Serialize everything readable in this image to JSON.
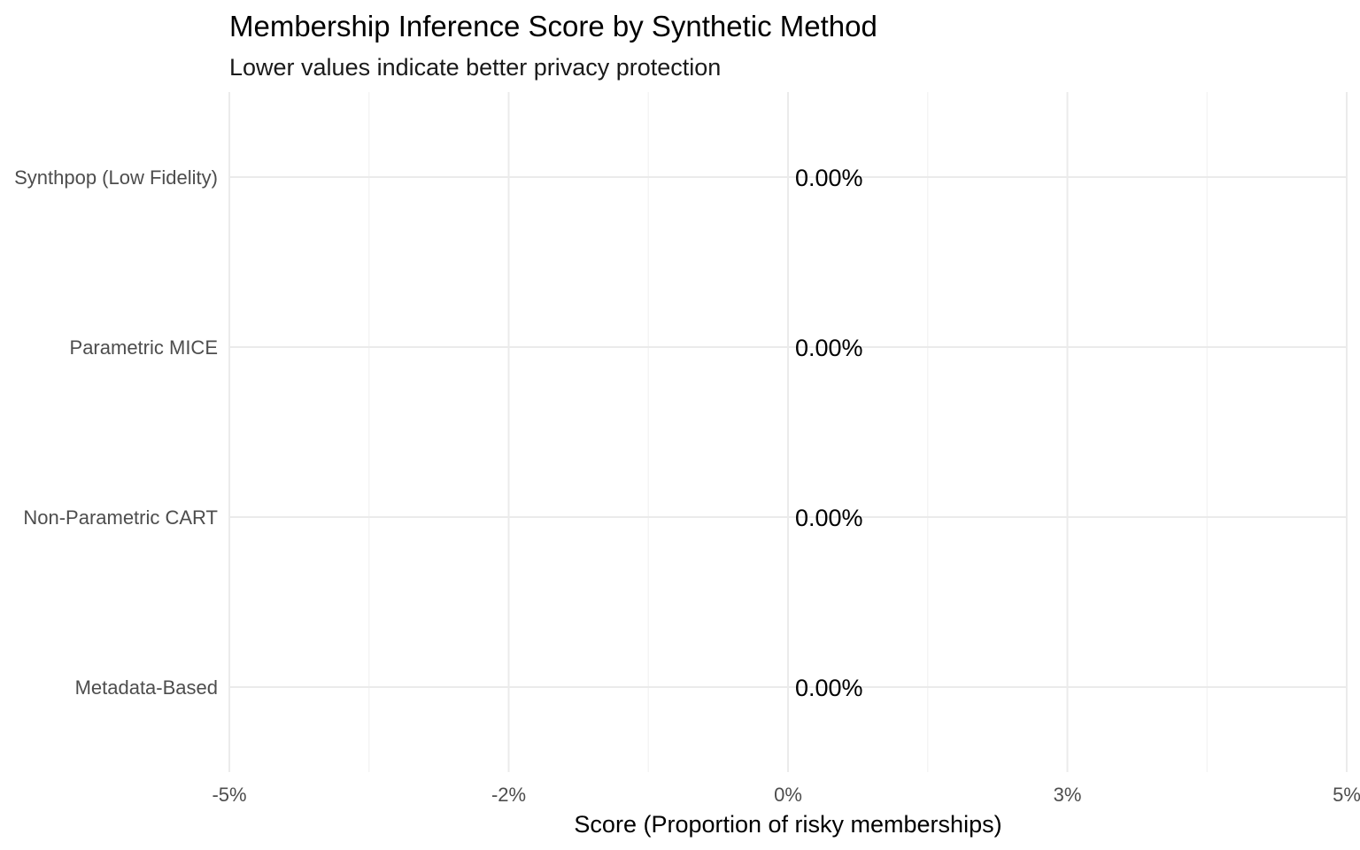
{
  "chart_data": {
    "type": "bar",
    "orientation": "horizontal",
    "title": "Membership Inference Score by Synthetic Method",
    "subtitle": "Lower values indicate better privacy protection",
    "xlabel": "Score (Proportion of risky memberships)",
    "ylabel": "",
    "categories": [
      "Synthpop (Low Fidelity)",
      "Parametric MICE",
      "Non-Parametric CART",
      "Metadata-Based"
    ],
    "values": [
      0,
      0,
      0,
      0
    ],
    "data_labels": [
      "0.00%",
      "0.00%",
      "0.00%",
      "0.00%"
    ],
    "xlim": [
      -0.05,
      0.05
    ],
    "x_ticks": [
      -0.05,
      -0.025,
      0,
      0.025,
      0.05
    ],
    "x_tick_labels": [
      "-5%",
      "-2%",
      "0%",
      "3%",
      "5%"
    ],
    "grid": true,
    "legend": "none",
    "bar_color": "#4682b4"
  }
}
